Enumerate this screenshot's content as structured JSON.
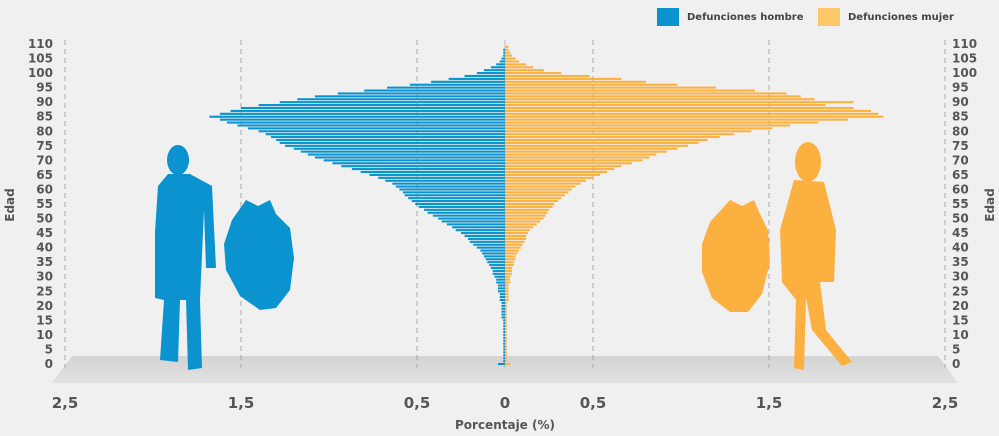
{
  "chart_data": {
    "type": "bar",
    "orientation": "horizontal-diverging",
    "xlabel": "Porcentaje (%)",
    "ylabel": "Edad",
    "x_ticks": [
      "2,5",
      "1,5",
      "0,5",
      "0",
      "0,5",
      "1,5",
      "2,5"
    ],
    "y_ticks": [
      "0",
      "5",
      "10",
      "15",
      "20",
      "25",
      "30",
      "35",
      "40",
      "45",
      "50",
      "55",
      "60",
      "65",
      "70",
      "75",
      "80",
      "85",
      "90",
      "95",
      "100",
      "105",
      "110"
    ],
    "xlim": [
      -2.5,
      2.5
    ],
    "ylim": [
      0,
      110
    ],
    "grid": "vertical dashed",
    "legend": {
      "position": "top-right",
      "entries": [
        "Defunciones hombre",
        "Defunciones mujer"
      ]
    },
    "ages": [
      0,
      1,
      2,
      3,
      4,
      5,
      6,
      7,
      8,
      9,
      10,
      11,
      12,
      13,
      14,
      15,
      16,
      17,
      18,
      19,
      20,
      21,
      22,
      23,
      24,
      25,
      26,
      27,
      28,
      29,
      30,
      31,
      32,
      33,
      34,
      35,
      36,
      37,
      38,
      39,
      40,
      41,
      42,
      43,
      44,
      45,
      46,
      47,
      48,
      49,
      50,
      51,
      52,
      53,
      54,
      55,
      56,
      57,
      58,
      59,
      60,
      61,
      62,
      63,
      64,
      65,
      66,
      67,
      68,
      69,
      70,
      71,
      72,
      73,
      74,
      75,
      76,
      77,
      78,
      79,
      80,
      81,
      82,
      83,
      84,
      85,
      86,
      87,
      88,
      89,
      90,
      91,
      92,
      93,
      94,
      95,
      96,
      97,
      98,
      99,
      100,
      101,
      102,
      103,
      104,
      105,
      106,
      107,
      108,
      109
    ],
    "series": [
      {
        "name": "Defunciones hombre",
        "color": "#0a93cf",
        "values": [
          0.04,
          0.01,
          0.01,
          0.01,
          0.01,
          0.01,
          0.01,
          0.01,
          0.01,
          0.01,
          0.01,
          0.01,
          0.01,
          0.01,
          0.01,
          0.01,
          0.02,
          0.02,
          0.02,
          0.02,
          0.02,
          0.02,
          0.03,
          0.03,
          0.03,
          0.04,
          0.04,
          0.04,
          0.05,
          0.05,
          0.06,
          0.07,
          0.07,
          0.08,
          0.09,
          0.1,
          0.11,
          0.12,
          0.13,
          0.14,
          0.16,
          0.18,
          0.2,
          0.21,
          0.23,
          0.25,
          0.28,
          0.3,
          0.33,
          0.36,
          0.38,
          0.41,
          0.44,
          0.46,
          0.49,
          0.51,
          0.53,
          0.55,
          0.57,
          0.58,
          0.6,
          0.62,
          0.64,
          0.68,
          0.72,
          0.77,
          0.82,
          0.87,
          0.93,
          0.98,
          1.03,
          1.08,
          1.12,
          1.16,
          1.2,
          1.25,
          1.28,
          1.3,
          1.33,
          1.36,
          1.4,
          1.46,
          1.52,
          1.58,
          1.62,
          1.68,
          1.62,
          1.56,
          1.5,
          1.4,
          1.28,
          1.18,
          1.08,
          0.95,
          0.8,
          0.67,
          0.54,
          0.42,
          0.32,
          0.23,
          0.16,
          0.12,
          0.08,
          0.05,
          0.03,
          0.02,
          0.01,
          0.01,
          0.01,
          0.0
        ]
      },
      {
        "name": "Defunciones mujer",
        "color": "#fcb040",
        "values": [
          0.03,
          0.01,
          0.01,
          0.01,
          0.01,
          0.01,
          0.01,
          0.01,
          0.01,
          0.01,
          0.01,
          0.01,
          0.01,
          0.01,
          0.01,
          0.01,
          0.01,
          0.01,
          0.01,
          0.01,
          0.01,
          0.01,
          0.02,
          0.02,
          0.02,
          0.02,
          0.02,
          0.02,
          0.03,
          0.03,
          0.03,
          0.04,
          0.04,
          0.04,
          0.05,
          0.05,
          0.06,
          0.06,
          0.07,
          0.08,
          0.09,
          0.1,
          0.11,
          0.12,
          0.12,
          0.13,
          0.14,
          0.16,
          0.18,
          0.2,
          0.22,
          0.23,
          0.24,
          0.25,
          0.27,
          0.28,
          0.3,
          0.32,
          0.34,
          0.36,
          0.38,
          0.4,
          0.43,
          0.46,
          0.5,
          0.54,
          0.58,
          0.62,
          0.66,
          0.72,
          0.78,
          0.82,
          0.86,
          0.92,
          0.98,
          1.04,
          1.1,
          1.15,
          1.22,
          1.3,
          1.4,
          1.52,
          1.62,
          1.78,
          1.95,
          2.15,
          2.12,
          2.08,
          1.98,
          1.82,
          1.98,
          1.76,
          1.68,
          1.6,
          1.42,
          1.2,
          0.98,
          0.8,
          0.66,
          0.48,
          0.32,
          0.22,
          0.16,
          0.12,
          0.08,
          0.06,
          0.04,
          0.03,
          0.02,
          0.02
        ]
      }
    ]
  }
}
